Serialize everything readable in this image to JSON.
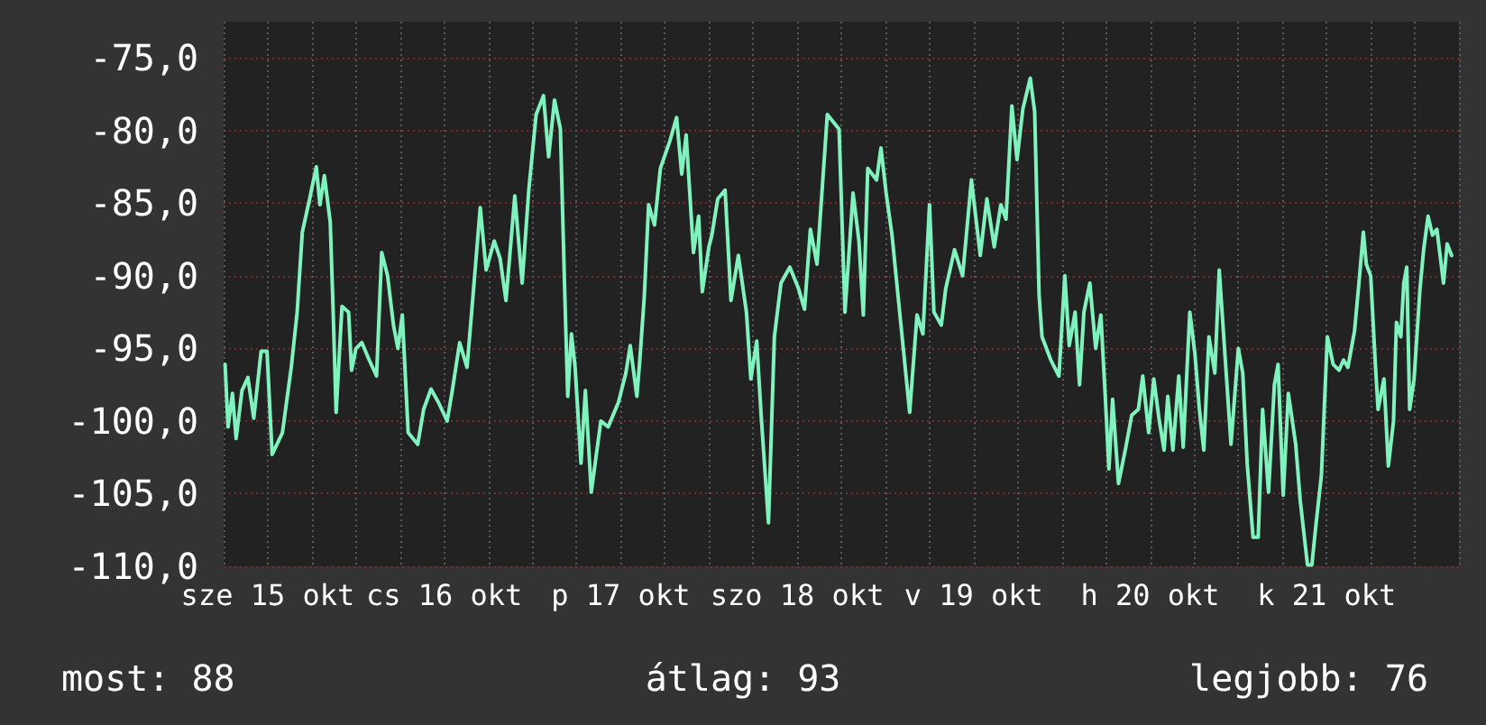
{
  "chart_data": {
    "type": "line",
    "x": [
      "--10-15T06:12",
      "--10-15T06:36",
      "--10-15T07:12",
      "--10-15T07:42",
      "--10-15T08:30",
      "--10-15T09:18",
      "--10-15T10:06",
      "--10-15T11:06",
      "--10-15T11:54",
      "--10-15T12:36",
      "--10-15T14:00",
      "--10-15T15:12",
      "--10-15T16:00",
      "--10-15T16:42",
      "--10-15T17:42",
      "--10-15T18:36",
      "--10-15T19:06",
      "--10-15T19:42",
      "--10-15T20:30",
      "--10-15T20:54",
      "--10-15T21:18",
      "--10-15T22:06",
      "--10-15T23:00",
      "--10-15T23:24",
      "--10-16T00:00",
      "--10-16T00:48",
      "--10-16T01:48",
      "--10-16T02:48",
      "--10-16T03:30",
      "--10-16T04:18",
      "--10-16T05:06",
      "--10-16T05:42",
      "--10-16T06:18",
      "--10-16T07:06",
      "--10-16T08:24",
      "--10-16T09:12",
      "--10-16T10:12",
      "--10-16T11:12",
      "--10-16T12:24",
      "--10-16T13:06",
      "--10-16T14:06",
      "--10-16T15:06",
      "--10-16T15:42",
      "--10-16T16:54",
      "--10-16T17:42",
      "--10-16T18:48",
      "--10-16T19:36",
      "--10-16T20:24",
      "--10-16T21:36",
      "--10-16T22:36",
      "--10-16T23:30",
      "--10-17T00:30",
      "--10-17T01:30",
      "--10-17T02:12",
      "--10-17T03:00",
      "--10-17T03:48",
      "--10-17T04:24",
      "--10-17T04:48",
      "--10-17T05:18",
      "--10-17T05:48",
      "--10-17T06:36",
      "--10-17T07:12",
      "--10-17T08:00",
      "--10-17T09:18",
      "--10-17T10:18",
      "--10-17T11:42",
      "--10-17T12:42",
      "--10-17T13:18",
      "--10-17T14:12",
      "--10-17T14:36",
      "--10-17T15:12",
      "--10-17T15:48",
      "--10-17T16:36",
      "--10-17T17:24",
      "--10-17T18:42",
      "--10-17T19:36",
      "--10-17T20:18",
      "--10-17T20:54",
      "--10-17T21:54",
      "--10-17T22:36",
      "--10-17T23:06",
      "--10-18T00:00",
      "--10-18T00:24",
      "--10-18T01:12",
      "--10-18T02:12",
      "--10-18T03:00",
      "--10-18T04:00",
      "--10-18T05:06",
      "--10-18T05:42",
      "--10-18T06:30",
      "--10-18T07:06",
      "--10-18T08:06",
      "--10-18T08:54",
      "--10-18T09:48",
      "--10-18T11:00",
      "--10-18T12:12",
      "--10-18T13:00",
      "--10-18T13:48",
      "--10-18T14:42",
      "--10-18T16:06",
      "--10-18T17:42",
      "--10-18T18:30",
      "--10-18T19:36",
      "--10-18T20:24",
      "--10-18T21:00",
      "--10-18T21:36",
      "--10-18T22:48",
      "--10-18T23:24",
      "--10-19T00:06",
      "--10-19T00:54",
      "--10-19T01:54",
      "--10-19T03:18",
      "--10-19T04:18",
      "--10-19T05:06",
      "--10-19T06:00",
      "--10-19T06:36",
      "--10-19T07:36",
      "--10-19T08:12",
      "--10-19T09:24",
      "--10-19T10:30",
      "--10-19T11:42",
      "--10-19T12:54",
      "--10-19T13:48",
      "--10-19T14:48",
      "--10-19T15:42",
      "--10-19T16:24",
      "--10-19T17:12",
      "--10-19T17:54",
      "--10-19T18:42",
      "--10-19T19:42",
      "--10-19T20:18",
      "--10-19T20:54",
      "--10-19T21:18",
      "--10-19T22:30",
      "--10-19T23:36",
      "--10-20T00:24",
      "--10-20T01:00",
      "--10-20T01:48",
      "--10-20T02:24",
      "--10-20T03:00",
      "--10-20T03:48",
      "--10-20T04:36",
      "--10-20T05:18",
      "--10-20T05:54",
      "--10-20T06:24",
      "--10-20T06:54",
      "--10-20T07:42",
      "--10-20T08:42",
      "--10-20T09:30",
      "--10-20T10:24",
      "--10-20T11:00",
      "--10-20T11:48",
      "--10-20T12:30",
      "--10-20T13:12",
      "--10-20T13:54",
      "--10-20T14:24",
      "--10-20T15:06",
      "--10-20T15:54",
      "--10-20T16:30",
      "--10-20T17:24",
      "--10-20T18:06",
      "--10-20T18:42",
      "--10-20T19:18",
      "--10-20T20:00",
      "--10-20T20:48",
      "--10-20T21:24",
      "--10-20T22:24",
      "--10-20T23:00",
      "--10-21T00:00",
      "--10-21T00:36",
      "--10-21T01:12",
      "--10-21T02:00",
      "--10-21T02:42",
      "--10-21T03:18",
      "--10-21T04:06",
      "--10-21T04:54",
      "--10-21T05:24",
      "--10-21T06:06",
      "--10-21T06:48",
      "--10-21T07:48",
      "--10-21T08:24",
      "--10-21T09:24",
      "--10-21T10:00",
      "--10-21T10:30",
      "--10-21T11:18",
      "--10-21T12:06",
      "--10-21T12:54",
      "--10-21T13:42",
      "--10-21T14:18",
      "--10-21T14:54",
      "--10-21T15:48",
      "--10-21T16:24",
      "--10-21T17:00",
      "--10-21T17:24",
      "--10-21T18:00",
      "--10-21T18:36",
      "--10-21T19:00",
      "--10-21T19:48",
      "--10-21T20:24",
      "--10-21T21:06",
      "--10-21T21:30",
      "--10-21T22:06",
      "--10-21T22:30",
      "--10-21T22:54",
      "--10-21T23:18",
      "--10-21T23:54",
      "--10-22T00:42",
      "--10-22T01:12",
      "--10-22T01:48",
      "--10-22T02:24",
      "--10-22T03:00",
      "--10-22T03:54",
      "--10-22T04:24",
      "--10-22T05:00"
    ],
    "series": [
      {
        "color": "#80f2bd",
        "values": [
          -96.1,
          -100.4,
          -98.1,
          -101.2,
          -97.9,
          -97.0,
          -99.8,
          -95.2,
          -95.2,
          -102.3,
          -100.8,
          -96.3,
          -92.5,
          -87.0,
          -84.7,
          -82.5,
          -85.1,
          -83.1,
          -86.3,
          -92.5,
          -99.4,
          -92.1,
          -92.5,
          -96.5,
          -95.0,
          -94.6,
          -95.8,
          -96.9,
          -88.4,
          -90.0,
          -93.4,
          -95.0,
          -92.7,
          -100.8,
          -101.6,
          -99.2,
          -97.8,
          -98.7,
          -100.0,
          -97.9,
          -94.6,
          -96.3,
          -92.7,
          -85.3,
          -89.6,
          -87.6,
          -88.8,
          -91.7,
          -84.5,
          -90.5,
          -84.1,
          -78.9,
          -77.6,
          -81.8,
          -77.9,
          -79.9,
          -91.3,
          -98.3,
          -94.0,
          -96.3,
          -102.9,
          -97.9,
          -104.9,
          -100.0,
          -100.4,
          -98.7,
          -96.7,
          -94.8,
          -98.3,
          -95.8,
          -91.5,
          -85.1,
          -86.5,
          -82.6,
          -80.7,
          -79.1,
          -83.0,
          -80.3,
          -88.4,
          -85.9,
          -91.1,
          -88.0,
          -87.2,
          -84.7,
          -84.1,
          -91.7,
          -88.6,
          -92.5,
          -97.1,
          -94.5,
          -99.6,
          -107.0,
          -94.2,
          -90.5,
          -89.4,
          -90.9,
          -92.3,
          -86.8,
          -89.2,
          -78.9,
          -79.9,
          -92.5,
          -84.3,
          -87.6,
          -92.7,
          -82.6,
          -83.4,
          -81.2,
          -84.3,
          -87.2,
          -92.3,
          -99.4,
          -92.7,
          -94.0,
          -85.1,
          -92.5,
          -93.4,
          -90.9,
          -88.2,
          -90.0,
          -83.4,
          -88.6,
          -84.7,
          -88.0,
          -85.1,
          -86.1,
          -78.3,
          -82.0,
          -78.5,
          -76.4,
          -78.7,
          -91.3,
          -94.2,
          -95.8,
          -96.9,
          -90.0,
          -94.8,
          -92.5,
          -97.5,
          -92.5,
          -90.5,
          -95.0,
          -92.7,
          -98.3,
          -103.3,
          -98.5,
          -104.3,
          -101.8,
          -99.6,
          -99.2,
          -96.9,
          -100.8,
          -97.1,
          -99.8,
          -102.0,
          -98.3,
          -102.0,
          -96.9,
          -101.8,
          -92.5,
          -95.4,
          -99.2,
          -102.0,
          -94.2,
          -96.7,
          -89.6,
          -97.1,
          -101.6,
          -95.0,
          -96.7,
          -102.9,
          -108.0,
          -108.0,
          -99.2,
          -104.9,
          -97.5,
          -96.1,
          -105.1,
          -98.1,
          -101.6,
          -105.4,
          -109.9,
          -109.9,
          -107.4,
          -103.7,
          -94.2,
          -96.1,
          -96.5,
          -95.8,
          -96.3,
          -93.8,
          -90.5,
          -87.0,
          -89.2,
          -90.0,
          -95.8,
          -99.2,
          -97.1,
          -103.1,
          -100.0,
          -93.2,
          -94.2,
          -90.5,
          -89.4,
          -99.2,
          -97.1,
          -90.9,
          -88.2,
          -85.9,
          -87.2,
          -86.8,
          -90.5,
          -87.8,
          -88.6
        ]
      }
    ],
    "xlim": [
      "--10-15T06:00",
      "--10-22T06:00"
    ],
    "xticks": [
      {
        "value": "--10-15T06:00",
        "label": null
      },
      {
        "value": "--10-15T12:00",
        "label": "sze 15 okt"
      },
      {
        "value": "--10-15T18:00",
        "label": null
      },
      {
        "value": "--10-16T00:00",
        "label": null
      },
      {
        "value": "--10-16T06:00",
        "label": null
      },
      {
        "value": "--10-16T12:00",
        "label": "cs 16 okt"
      },
      {
        "value": "--10-16T18:00",
        "label": null
      },
      {
        "value": "--10-17T00:00",
        "label": null
      },
      {
        "value": "--10-17T06:00",
        "label": null
      },
      {
        "value": "--10-17T12:00",
        "label": "p 17 okt"
      },
      {
        "value": "--10-17T18:00",
        "label": null
      },
      {
        "value": "--10-18T00:00",
        "label": null
      },
      {
        "value": "--10-18T06:00",
        "label": null
      },
      {
        "value": "--10-18T12:00",
        "label": "szo 18 okt"
      },
      {
        "value": "--10-18T18:00",
        "label": null
      },
      {
        "value": "--10-19T00:00",
        "label": null
      },
      {
        "value": "--10-19T06:00",
        "label": null
      },
      {
        "value": "--10-19T12:00",
        "label": "v 19 okt"
      },
      {
        "value": "--10-19T18:00",
        "label": null
      },
      {
        "value": "--10-20T00:00",
        "label": null
      },
      {
        "value": "--10-20T06:00",
        "label": null
      },
      {
        "value": "--10-20T12:00",
        "label": "h 20 okt"
      },
      {
        "value": "--10-20T18:00",
        "label": null
      },
      {
        "value": "--10-21T00:00",
        "label": null
      },
      {
        "value": "--10-21T06:00",
        "label": null
      },
      {
        "value": "--10-21T12:00",
        "label": "k 21 okt"
      },
      {
        "value": "--10-21T18:00",
        "label": null
      },
      {
        "value": "--10-22T00:00",
        "label": null
      },
      {
        "value": "--10-22T06:00",
        "label": null
      }
    ],
    "ylim": [
      -110,
      -72.5
    ],
    "yticks": [
      {
        "value": -110,
        "label": "-110,0"
      },
      {
        "value": -105,
        "label": "-105,0"
      },
      {
        "value": -100,
        "label": "-100,0"
      },
      {
        "value": -95,
        "label": "-95,0"
      },
      {
        "value": -90,
        "label": "-90,0"
      },
      {
        "value": -85,
        "label": "-85,0"
      },
      {
        "value": -80,
        "label": "-80,0"
      },
      {
        "value": -75,
        "label": "-75,0"
      }
    ],
    "grid": true,
    "marker": "none",
    "line_style": "solid",
    "annotations": [
      "most: 88",
      "átlag: 93",
      "legjobb: 76"
    ]
  }
}
